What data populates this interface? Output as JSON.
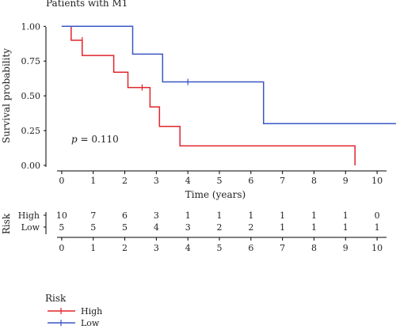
{
  "chart_data": {
    "type": "line",
    "title": "Patients with M1",
    "xlabel": "Time (years)",
    "ylabel": "Survival probability",
    "xlim": [
      -0.5,
      10.6
    ],
    "ylim": [
      -0.04,
      1.03
    ],
    "x_ticks": [
      0,
      1,
      2,
      3,
      4,
      5,
      6,
      7,
      8,
      9,
      10
    ],
    "y_ticks": [
      "0.00",
      "0.25",
      "0.50",
      "0.75",
      "1.00"
    ],
    "annotation": {
      "p_symbol": "p",
      "p_text": " = 0.110",
      "x": 0.3,
      "y": 0.17
    },
    "colors": {
      "High": "#e0242b",
      "Low": "#3a56c5",
      "axis": "#000000"
    },
    "series": [
      {
        "name": "High",
        "color": "#e0242b",
        "steps": [
          [
            0,
            1.0
          ],
          [
            0.3,
            0.9
          ],
          [
            0.65,
            0.79
          ],
          [
            1.65,
            0.67
          ],
          [
            2.1,
            0.56
          ],
          [
            2.8,
            0.42
          ],
          [
            3.1,
            0.28
          ],
          [
            3.75,
            0.14
          ],
          [
            9.3,
            0.0
          ]
        ],
        "end_x": 9.3,
        "censors": [
          [
            0.65,
            0.9
          ],
          [
            2.55,
            0.56
          ]
        ]
      },
      {
        "name": "Low",
        "color": "#3a56c5",
        "steps": [
          [
            0,
            1.0
          ],
          [
            2.25,
            0.8
          ],
          [
            3.2,
            0.6
          ],
          [
            6.4,
            0.3
          ]
        ],
        "end_x": 10.6,
        "censors": [
          [
            4.0,
            0.6
          ]
        ]
      }
    ],
    "risk_table": {
      "title": "Risk",
      "rows": [
        {
          "label": "High",
          "counts": [
            "10",
            "7",
            "6",
            "3",
            "1",
            "1",
            "1",
            "1",
            "1",
            "1",
            "0"
          ]
        },
        {
          "label": "Low",
          "counts": [
            "5",
            "5",
            "5",
            "4",
            "3",
            "2",
            "2",
            "1",
            "1",
            "1",
            "1"
          ]
        }
      ]
    },
    "legend": {
      "title": "Risk",
      "placement": "bottom-left",
      "items": [
        {
          "label": "High",
          "color": "#e0242b"
        },
        {
          "label": "Low",
          "color": "#3a56c5"
        }
      ]
    }
  }
}
